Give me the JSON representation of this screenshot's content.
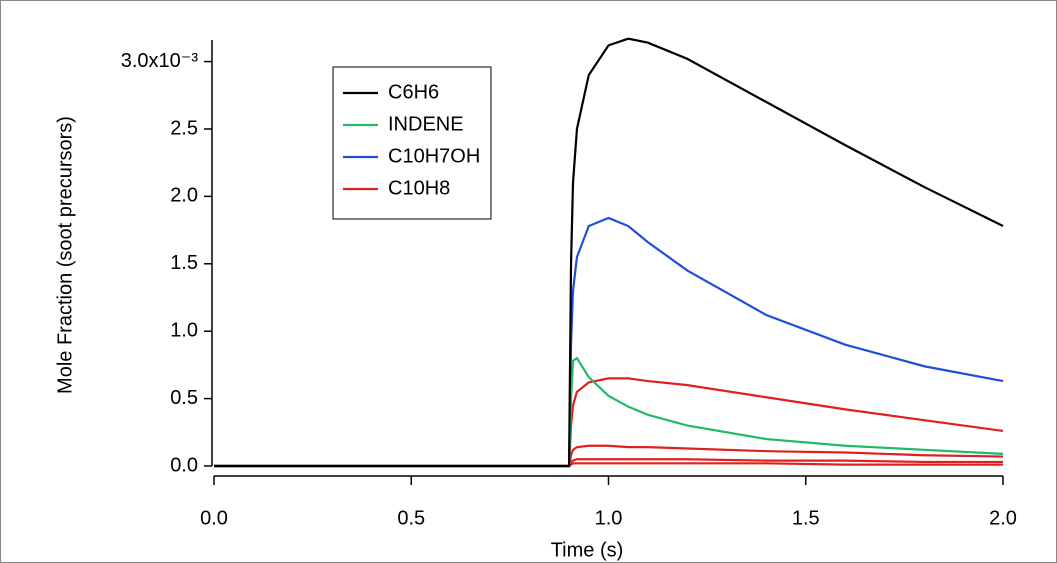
{
  "chart_data": {
    "type": "line",
    "xlabel": "Time (s)",
    "ylabel": "Mole Fraction (soot precursors)",
    "x": [
      0,
      0.9,
      0.905,
      0.91,
      0.92,
      0.95,
      1.0,
      1.05,
      1.1,
      1.2,
      1.4,
      1.6,
      1.8,
      2.0
    ],
    "series": [
      {
        "name": "C6H6",
        "color": "#000000",
        "values": [
          0,
          0,
          1.5,
          2.1,
          2.5,
          2.9,
          3.12,
          3.17,
          3.14,
          3.02,
          2.7,
          2.38,
          2.07,
          1.78
        ]
      },
      {
        "name": "INDENE",
        "color": "#22b86a",
        "values": [
          0,
          0,
          0.5,
          0.78,
          0.8,
          0.66,
          0.52,
          0.44,
          0.38,
          0.3,
          0.2,
          0.15,
          0.12,
          0.09
        ]
      },
      {
        "name": "C10H7OH",
        "color": "#1f4ed8",
        "values": [
          0,
          0,
          0.9,
          1.3,
          1.55,
          1.78,
          1.84,
          1.78,
          1.66,
          1.45,
          1.12,
          0.9,
          0.74,
          0.63
        ]
      },
      {
        "name": "C10H8",
        "color": "#e0201f",
        "values": [
          0,
          0,
          0.3,
          0.45,
          0.55,
          0.62,
          0.65,
          0.65,
          0.63,
          0.6,
          0.51,
          0.42,
          0.34,
          0.26
        ]
      },
      {
        "color": "#e0201f",
        "values": [
          0,
          0,
          0.08,
          0.12,
          0.14,
          0.15,
          0.15,
          0.14,
          0.14,
          0.13,
          0.11,
          0.1,
          0.08,
          0.07
        ]
      },
      {
        "color": "#e0201f",
        "values": [
          0,
          0,
          0.03,
          0.04,
          0.05,
          0.05,
          0.05,
          0.05,
          0.05,
          0.05,
          0.04,
          0.04,
          0.03,
          0.03
        ]
      },
      {
        "color": "#e0201f",
        "values": [
          0,
          0,
          0.01,
          0.02,
          0.02,
          0.02,
          0.02,
          0.02,
          0.02,
          0.02,
          0.02,
          0.01,
          0.01,
          0.01
        ]
      }
    ],
    "xlim": [
      0,
      2
    ],
    "xticks": [
      {
        "value": 0,
        "label": "0.0"
      },
      0.5,
      {
        "value": 1,
        "label": "1.0"
      },
      1.5,
      {
        "value": 2,
        "label": "2.0"
      }
    ],
    "ylim": [
      0,
      3.16
    ],
    "yticks": [
      {
        "value": 0,
        "label": "0.0"
      },
      0.5,
      {
        "value": 1,
        "label": "1.0"
      },
      1.5,
      {
        "value": 2,
        "label": "2.0"
      },
      2.5,
      {
        "value": 3,
        "label": "3.0x10⁻³"
      }
    ],
    "legend": "upper-left"
  }
}
